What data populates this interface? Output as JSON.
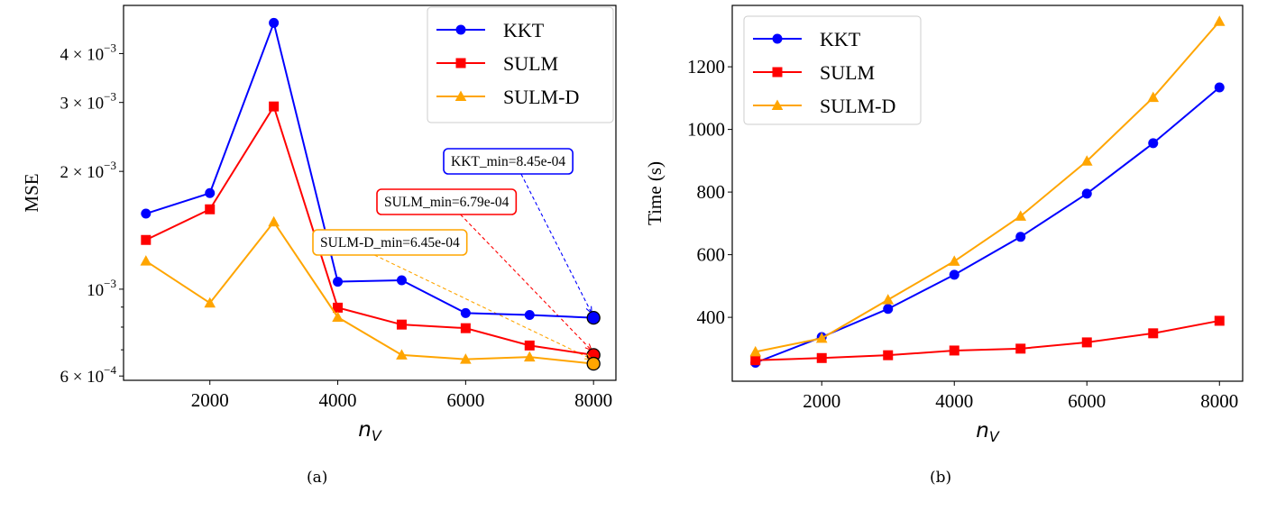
{
  "chart_data": [
    {
      "type": "line",
      "caption": "(a)",
      "xlabel": "n_V",
      "ylabel": "MSE",
      "yscale": "log",
      "xlim": [
        650,
        8350
      ],
      "ylim": [
        0.000585,
        0.00531
      ],
      "xticks": [
        2000,
        4000,
        6000,
        8000
      ],
      "xtick_labels": [
        "2000",
        "4000",
        "6000",
        "8000"
      ],
      "yticks": [
        0.0006,
        0.001,
        0.002,
        0.003,
        0.004
      ],
      "ytick_labels": [
        {
          "mant": "6 × 10",
          "exp": "−4"
        },
        {
          "mant": "10",
          "exp": "−3"
        },
        {
          "mant": "2 × 10",
          "exp": "−3"
        },
        {
          "mant": "3 × 10",
          "exp": "−3"
        },
        {
          "mant": "4 × 10",
          "exp": "−3"
        }
      ],
      "grid": false,
      "legend_position": "top-right",
      "x": [
        1000,
        2000,
        3000,
        4000,
        5000,
        6000,
        7000,
        8000
      ],
      "series": [
        {
          "name": "KKT",
          "color": "#0000ff",
          "marker": "circle",
          "values": [
            0.00156,
            0.00176,
            0.00479,
            0.001045,
            0.001054,
            0.000869,
            0.000859,
            0.000845
          ]
        },
        {
          "name": "SULM",
          "color": "#ff0000",
          "marker": "square",
          "values": [
            0.001336,
            0.0016,
            0.00293,
            0.000897,
            0.000812,
            0.000795,
            0.000718,
            0.000679
          ]
        },
        {
          "name": "SULM-D",
          "color": "#ffa500",
          "marker": "triangle",
          "values": [
            0.00118,
            0.000922,
            0.001485,
            0.000848,
            0.000679,
            0.000662,
            0.000671,
            0.000645
          ]
        }
      ],
      "annotations": [
        {
          "text": "KKT_min=8.45e-04",
          "x": 8000,
          "y": 0.000845,
          "color": "#0000ff"
        },
        {
          "text": "SULM_min=6.79e-04",
          "x": 8000,
          "y": 0.000679,
          "color": "#ff0000"
        },
        {
          "text": "SULM-D_min=6.45e-04",
          "x": 8000,
          "y": 0.000645,
          "color": "#ffa500"
        }
      ]
    },
    {
      "type": "line",
      "caption": "(b)",
      "xlabel": "n_V",
      "ylabel": "Time (s)",
      "yscale": "linear",
      "xlim": [
        650,
        8350
      ],
      "ylim": [
        196,
        1396
      ],
      "xticks": [
        2000,
        4000,
        6000,
        8000
      ],
      "xtick_labels": [
        "2000",
        "4000",
        "6000",
        "8000"
      ],
      "yticks": [
        400,
        600,
        800,
        1000,
        1200
      ],
      "ytick_labels": [
        "400",
        "600",
        "800",
        "1000",
        "1200"
      ],
      "grid": false,
      "legend_position": "top-left",
      "x": [
        1000,
        2000,
        3000,
        4000,
        5000,
        6000,
        7000,
        8000
      ],
      "series": [
        {
          "name": "KKT",
          "color": "#0000ff",
          "marker": "circle",
          "values": [
            255,
            337,
            427,
            536,
            657,
            795,
            956,
            1134
          ]
        },
        {
          "name": "SULM",
          "color": "#ff0000",
          "marker": "square",
          "values": [
            263,
            270,
            279,
            294,
            300,
            320,
            349,
            389
          ]
        },
        {
          "name": "SULM-D",
          "color": "#ffa500",
          "marker": "triangle",
          "values": [
            290,
            333,
            456,
            579,
            723,
            899,
            1102,
            1345
          ]
        }
      ]
    }
  ]
}
